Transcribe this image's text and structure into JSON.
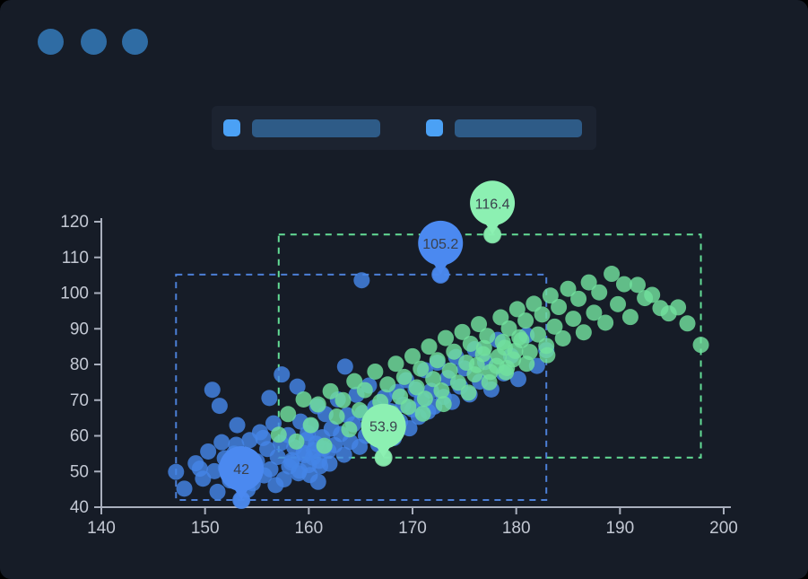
{
  "window": {
    "background_color": "#161C27",
    "control_dot_color": "#2F6CA4",
    "controls": [
      {
        "name": "window-dot-1"
      },
      {
        "name": "window-dot-2"
      },
      {
        "name": "window-dot-3"
      }
    ]
  },
  "legend": {
    "band_color": "#1C2330",
    "items": [
      {
        "swatch_color": "#4BA1F5",
        "bar_color": "#2E5B87",
        "label_text": ""
      },
      {
        "swatch_color": "#4BA1F5",
        "bar_color": "#2E5B87",
        "label_text": ""
      }
    ]
  },
  "chart_data": {
    "type": "scatter",
    "title": "",
    "xlabel": "",
    "ylabel": "",
    "xlim": [
      140,
      200
    ],
    "ylim": [
      40,
      120
    ],
    "x_ticks": [
      140,
      150,
      160,
      170,
      180,
      190,
      200
    ],
    "y_ticks": [
      40,
      50,
      60,
      70,
      80,
      90,
      100,
      110,
      120
    ],
    "grid": false,
    "axis_color": "#A9AFBD",
    "tick_label_color": "#C3C8D3",
    "pin_label_color": "#3A414D",
    "point_radius": 9,
    "series": [
      {
        "id": "blue",
        "name": "blue-series",
        "color": "#4485E6",
        "pin_color": "#4B89F0",
        "area_color": "#4C7FD6",
        "mark_points": [
          {
            "type": "max",
            "x": 172.7,
            "y": 105.2,
            "label": "105.2"
          },
          {
            "type": "min",
            "x": 153.5,
            "y": 42,
            "label": "42"
          }
        ],
        "mark_area": {
          "x": [
            147.2,
            182.9
          ],
          "y": [
            42,
            105.2
          ]
        },
        "points": [
          [
            147.2,
            49.9
          ],
          [
            148.0,
            45.2
          ],
          [
            149.1,
            52.3
          ],
          [
            149.5,
            50.8
          ],
          [
            149.8,
            48.0
          ],
          [
            150.3,
            55.6
          ],
          [
            150.7,
            72.9
          ],
          [
            150.9,
            50.1
          ],
          [
            151.2,
            44.3
          ],
          [
            151.4,
            68.4
          ],
          [
            151.6,
            58.2
          ],
          [
            151.9,
            53.7
          ],
          [
            152.0,
            51.0
          ],
          [
            152.4,
            47.5
          ],
          [
            152.8,
            55.0
          ],
          [
            153.0,
            57.5
          ],
          [
            153.1,
            63.0
          ],
          [
            153.2,
            49.2
          ],
          [
            153.5,
            42.0
          ],
          [
            153.9,
            53.4
          ],
          [
            154.1,
            44.9
          ],
          [
            154.3,
            58.8
          ],
          [
            154.6,
            46.7
          ],
          [
            155.0,
            52.8
          ],
          [
            155.3,
            61.0
          ],
          [
            155.6,
            59.4
          ],
          [
            155.7,
            48.9
          ],
          [
            156.0,
            56.3
          ],
          [
            156.2,
            70.6
          ],
          [
            156.3,
            50.6
          ],
          [
            156.6,
            63.5
          ],
          [
            156.8,
            46.2
          ],
          [
            157.0,
            54.1
          ],
          [
            157.3,
            58.0
          ],
          [
            157.4,
            77.2
          ],
          [
            157.6,
            47.8
          ],
          [
            158.0,
            60.2
          ],
          [
            158.1,
            51.4
          ],
          [
            158.3,
            52.5
          ],
          [
            158.4,
            53.2
          ],
          [
            158.6,
            56.8
          ],
          [
            158.9,
            73.8
          ],
          [
            159.0,
            49.5
          ],
          [
            159.1,
            50.2
          ],
          [
            159.2,
            64.0
          ],
          [
            159.5,
            55.2
          ],
          [
            159.6,
            54.6
          ],
          [
            159.8,
            58.9
          ],
          [
            159.9,
            60.8
          ],
          [
            160.0,
            51.8
          ],
          [
            160.1,
            49.0
          ],
          [
            160.2,
            62.7
          ],
          [
            160.4,
            53.9
          ],
          [
            160.5,
            56.0
          ],
          [
            160.7,
            57.8
          ],
          [
            160.8,
            68.3
          ],
          [
            160.9,
            47.1
          ],
          [
            161.0,
            53.0
          ],
          [
            161.1,
            51.5
          ],
          [
            161.3,
            59.6
          ],
          [
            161.4,
            56.4
          ],
          [
            161.6,
            66.1
          ],
          [
            161.9,
            55.8
          ],
          [
            162.0,
            52.2
          ],
          [
            162.2,
            62.0
          ],
          [
            162.5,
            57.4
          ],
          [
            162.8,
            70.2
          ],
          [
            163.1,
            60.5
          ],
          [
            163.4,
            54.7
          ],
          [
            163.5,
            79.4
          ],
          [
            163.7,
            65.8
          ],
          [
            164.0,
            58.3
          ],
          [
            164.3,
            63.2
          ],
          [
            164.6,
            71.5
          ],
          [
            164.9,
            56.9
          ],
          [
            165.1,
            103.6
          ],
          [
            165.2,
            66.4
          ],
          [
            165.5,
            60.0
          ],
          [
            165.8,
            74.1
          ],
          [
            166.1,
            62.8
          ],
          [
            166.4,
            68.0
          ],
          [
            166.7,
            57.6
          ],
          [
            167.0,
            64.5
          ],
          [
            167.3,
            70.8
          ],
          [
            167.6,
            61.2
          ],
          [
            167.9,
            66.9
          ],
          [
            168.2,
            59.4
          ],
          [
            168.5,
            72.3
          ],
          [
            168.8,
            64.0
          ],
          [
            169.1,
            68.7
          ],
          [
            169.4,
            75.6
          ],
          [
            169.7,
            62.1
          ],
          [
            170.0,
            67.4
          ],
          [
            170.3,
            73.0
          ],
          [
            170.6,
            65.3
          ],
          [
            170.9,
            70.1
          ],
          [
            171.2,
            78.4
          ],
          [
            171.5,
            66.8
          ],
          [
            171.8,
            72.6
          ],
          [
            172.1,
            68.2
          ],
          [
            172.4,
            80.5
          ],
          [
            172.7,
            105.2
          ],
          [
            173.0,
            70.9
          ],
          [
            173.4,
            76.2
          ],
          [
            173.8,
            69.5
          ],
          [
            174.2,
            82.1
          ],
          [
            174.6,
            73.8
          ],
          [
            175.0,
            78.9
          ],
          [
            175.5,
            71.6
          ],
          [
            176.0,
            84.3
          ],
          [
            176.5,
            75.2
          ],
          [
            177.0,
            80.7
          ],
          [
            177.6,
            73.0
          ],
          [
            178.2,
            86.9
          ],
          [
            178.8,
            77.5
          ],
          [
            179.5,
            82.4
          ],
          [
            180.2,
            75.9
          ],
          [
            181.0,
            88.2
          ],
          [
            182.0,
            79.6
          ],
          [
            182.9,
            84.0
          ]
        ]
      },
      {
        "id": "green",
        "name": "green-series",
        "color": "#72E19E",
        "pin_color": "#8CF0B2",
        "area_color": "#63DC95",
        "mark_points": [
          {
            "type": "max",
            "x": 177.7,
            "y": 116.4,
            "label": "116.4"
          },
          {
            "type": "min",
            "x": 167.2,
            "y": 53.9,
            "label": "53.9"
          }
        ],
        "mark_area": {
          "x": [
            157.1,
            197.8
          ],
          "y": [
            53.9,
            116.4
          ]
        },
        "points": [
          [
            157.1,
            60.3
          ],
          [
            158.0,
            66.1
          ],
          [
            158.8,
            58.4
          ],
          [
            159.5,
            70.2
          ],
          [
            160.2,
            63.0
          ],
          [
            160.9,
            68.8
          ],
          [
            161.5,
            57.2
          ],
          [
            162.1,
            72.5
          ],
          [
            162.7,
            65.4
          ],
          [
            163.3,
            70.0
          ],
          [
            163.9,
            61.8
          ],
          [
            164.4,
            75.3
          ],
          [
            164.9,
            67.2
          ],
          [
            165.4,
            72.8
          ],
          [
            165.9,
            64.1
          ],
          [
            166.4,
            78.0
          ],
          [
            166.9,
            69.5
          ],
          [
            167.2,
            53.9
          ],
          [
            167.6,
            74.4
          ],
          [
            168.0,
            66.3
          ],
          [
            168.4,
            80.2
          ],
          [
            168.6,
            62.4
          ],
          [
            168.8,
            71.0
          ],
          [
            169.2,
            76.5
          ],
          [
            169.6,
            68.1
          ],
          [
            170.0,
            82.3
          ],
          [
            170.4,
            73.6
          ],
          [
            170.8,
            78.8
          ],
          [
            171.0,
            66.2
          ],
          [
            171.2,
            70.4
          ],
          [
            171.6,
            85.0
          ],
          [
            172.0,
            75.9
          ],
          [
            172.4,
            81.2
          ],
          [
            172.8,
            72.7
          ],
          [
            173.0,
            68.9
          ],
          [
            173.2,
            87.4
          ],
          [
            173.6,
            78.3
          ],
          [
            174.0,
            83.6
          ],
          [
            174.4,
            74.9
          ],
          [
            174.8,
            89.1
          ],
          [
            175.2,
            80.5
          ],
          [
            175.4,
            72.1
          ],
          [
            175.6,
            85.8
          ],
          [
            176.0,
            77.2
          ],
          [
            176.2,
            79.8
          ],
          [
            176.4,
            91.3
          ],
          [
            176.8,
            82.9
          ],
          [
            176.9,
            84.6
          ],
          [
            177.2,
            88.0
          ],
          [
            177.4,
            75.0
          ],
          [
            177.5,
            77.9
          ],
          [
            177.7,
            116.4
          ],
          [
            178.1,
            79.6
          ],
          [
            178.3,
            82.2
          ],
          [
            178.5,
            93.2
          ],
          [
            178.7,
            86.3
          ],
          [
            178.9,
            84.7
          ],
          [
            179.0,
            77.8
          ],
          [
            179.1,
            79.0
          ],
          [
            179.3,
            90.1
          ],
          [
            179.7,
            81.4
          ],
          [
            179.9,
            83.8
          ],
          [
            180.1,
            95.5
          ],
          [
            180.3,
            87.6
          ],
          [
            180.5,
            86.8
          ],
          [
            180.9,
            92.3
          ],
          [
            181.0,
            80.2
          ],
          [
            181.3,
            83.5
          ],
          [
            181.7,
            97.0
          ],
          [
            182.1,
            88.4
          ],
          [
            182.5,
            94.0
          ],
          [
            182.9,
            85.2
          ],
          [
            183.0,
            82.6
          ],
          [
            183.3,
            99.3
          ],
          [
            183.7,
            90.6
          ],
          [
            184.1,
            96.1
          ],
          [
            184.5,
            87.3
          ],
          [
            185.0,
            101.2
          ],
          [
            185.5,
            92.8
          ],
          [
            186.0,
            98.4
          ],
          [
            186.5,
            89.0
          ],
          [
            187.0,
            103.0
          ],
          [
            187.5,
            94.5
          ],
          [
            188.0,
            100.2
          ],
          [
            188.6,
            91.7
          ],
          [
            189.2,
            105.4
          ],
          [
            189.8,
            96.9
          ],
          [
            190.4,
            102.5
          ],
          [
            191.0,
            93.3
          ],
          [
            191.7,
            102.3
          ],
          [
            192.4,
            98.6
          ],
          [
            193.1,
            99.5
          ],
          [
            193.9,
            95.8
          ],
          [
            194.7,
            94.3
          ],
          [
            195.6,
            96.0
          ],
          [
            196.5,
            91.5
          ],
          [
            197.8,
            85.5
          ]
        ]
      }
    ]
  }
}
